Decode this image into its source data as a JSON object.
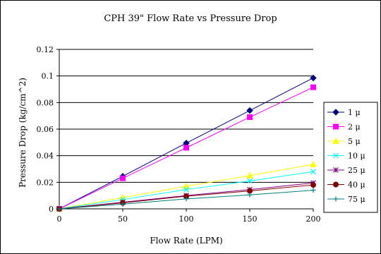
{
  "chart_data": {
    "type": "line",
    "title": "CPH 39\" Flow Rate vs Pressure Drop",
    "xlabel": "Flow Rate (LPM)",
    "ylabel": "Pressure Drop (kg/cm^2)",
    "x": [
      0,
      50,
      100,
      150,
      200
    ],
    "xlim": [
      0,
      200
    ],
    "ylim": [
      0,
      0.12
    ],
    "x_ticks": [
      "0",
      "50",
      "100",
      "150",
      "200"
    ],
    "y_ticks": [
      "0",
      "0.02",
      "0.04",
      "0.06",
      "0.08",
      "0.1",
      "0.12"
    ],
    "grid": "horizontal",
    "legend_position": "right",
    "series": [
      {
        "name": "1 μ",
        "color": "#000080",
        "marker": "diamond",
        "values": [
          0,
          0.0245,
          0.0495,
          0.074,
          0.0985
        ]
      },
      {
        "name": "2 μ",
        "color": "#ff00ff",
        "marker": "square",
        "values": [
          0,
          0.023,
          0.046,
          0.069,
          0.0915
        ]
      },
      {
        "name": "5 μ",
        "color": "#ffff00",
        "marker": "triangle",
        "values": [
          0,
          0.0085,
          0.017,
          0.025,
          0.0335
        ]
      },
      {
        "name": "10 μ",
        "color": "#00ffff",
        "marker": "x",
        "values": [
          0,
          0.007,
          0.0145,
          0.021,
          0.028
        ]
      },
      {
        "name": "25 μ",
        "color": "#800080",
        "marker": "star",
        "values": [
          0,
          0.005,
          0.01,
          0.0145,
          0.0195
        ]
      },
      {
        "name": "40 μ",
        "color": "#800000",
        "marker": "circle",
        "values": [
          0,
          0.0045,
          0.0095,
          0.0135,
          0.018
        ]
      },
      {
        "name": "75 μ",
        "color": "#008080",
        "marker": "plus",
        "values": [
          0,
          0.0035,
          0.0075,
          0.0105,
          0.014
        ]
      }
    ]
  }
}
